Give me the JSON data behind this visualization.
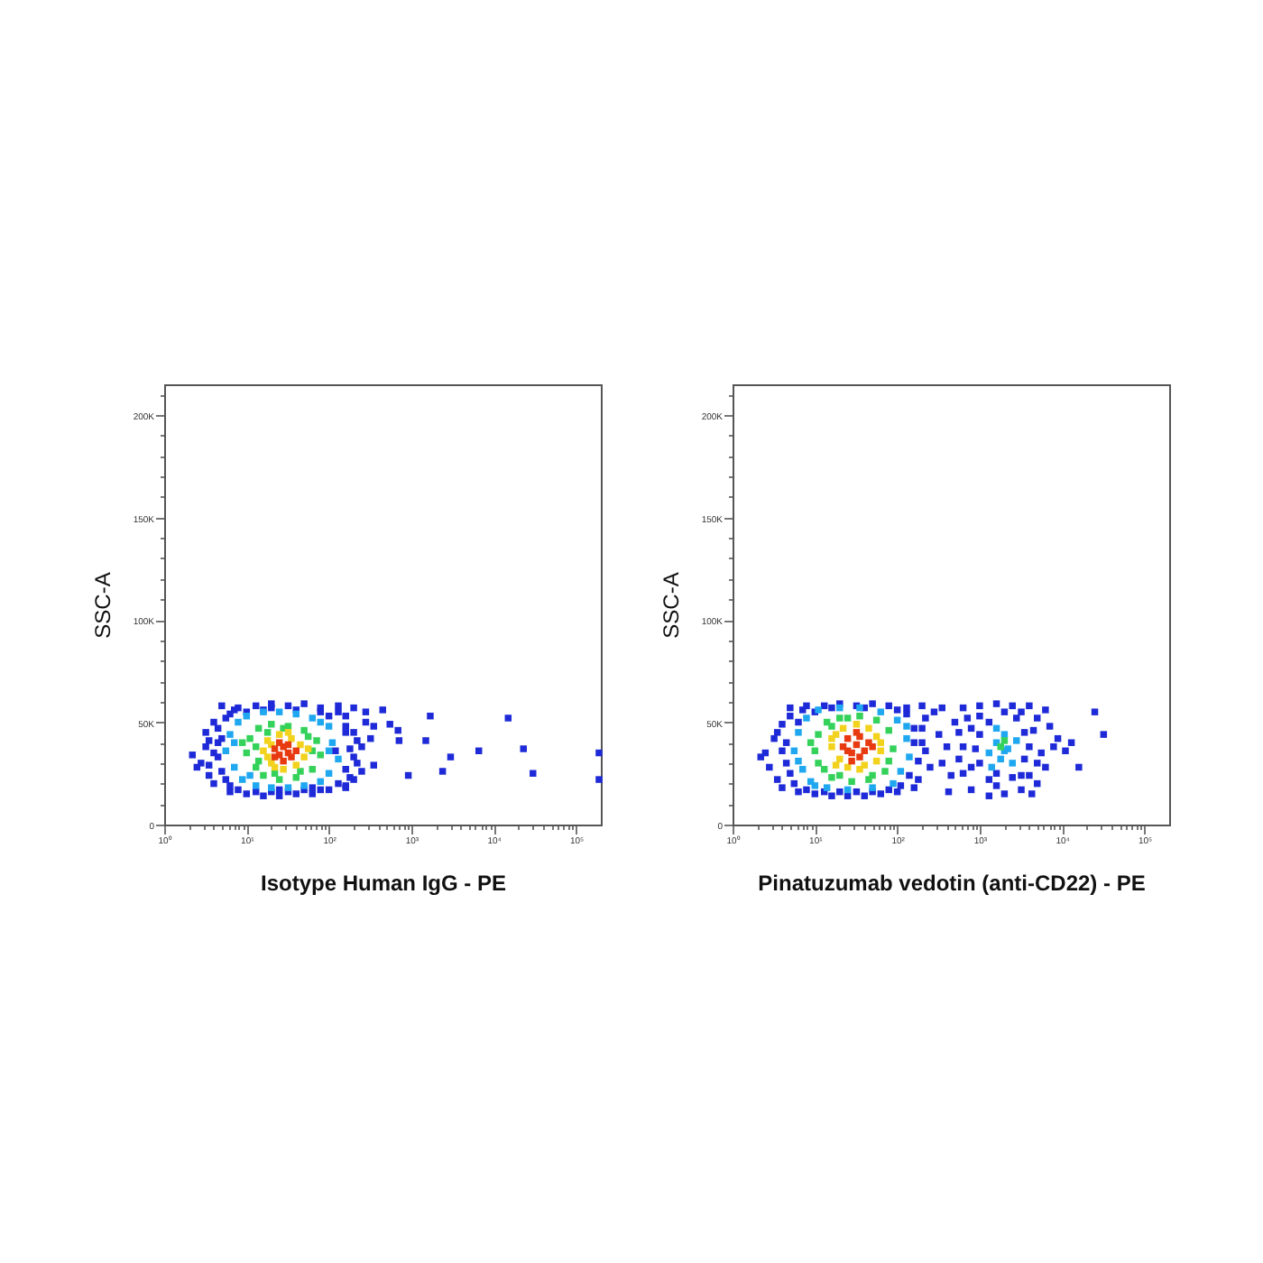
{
  "chart_data": [
    {
      "type": "scatter",
      "xlabel": "Isotype Human IgG - PE",
      "ylabel": "SSC-A",
      "log": "x",
      "grid": false,
      "marker": "square",
      "xlim": [
        1,
        200000
      ],
      "ylim": [
        0,
        215000
      ],
      "xticks": [
        {
          "value": 1,
          "label": "10⁰"
        },
        {
          "value": 2,
          "label": null
        },
        {
          "value": 3,
          "label": null
        },
        {
          "value": 4,
          "label": null
        },
        {
          "value": 5,
          "label": null
        },
        {
          "value": 6,
          "label": null
        },
        {
          "value": 7,
          "label": null
        },
        {
          "value": 8,
          "label": null
        },
        {
          "value": 9,
          "label": null
        },
        {
          "value": 10,
          "label": "10¹"
        },
        {
          "value": 20,
          "label": null
        },
        {
          "value": 30,
          "label": null
        },
        {
          "value": 40,
          "label": null
        },
        {
          "value": 50,
          "label": null
        },
        {
          "value": 60,
          "label": null
        },
        {
          "value": 70,
          "label": null
        },
        {
          "value": 80,
          "label": null
        },
        {
          "value": 90,
          "label": null
        },
        {
          "value": 100,
          "label": "10²"
        },
        {
          "value": 200,
          "label": null
        },
        {
          "value": 300,
          "label": null
        },
        {
          "value": 400,
          "label": null
        },
        {
          "value": 500,
          "label": null
        },
        {
          "value": 600,
          "label": null
        },
        {
          "value": 700,
          "label": null
        },
        {
          "value": 800,
          "label": null
        },
        {
          "value": 900,
          "label": null
        },
        {
          "value": 1000,
          "label": "10³"
        },
        {
          "value": 2000,
          "label": null
        },
        {
          "value": 3000,
          "label": null
        },
        {
          "value": 4000,
          "label": null
        },
        {
          "value": 5000,
          "label": null
        },
        {
          "value": 6000,
          "label": null
        },
        {
          "value": 7000,
          "label": null
        },
        {
          "value": 8000,
          "label": null
        },
        {
          "value": 9000,
          "label": null
        },
        {
          "value": 10000,
          "label": "10⁴"
        },
        {
          "value": 20000,
          "label": null
        },
        {
          "value": 30000,
          "label": null
        },
        {
          "value": 40000,
          "label": null
        },
        {
          "value": 50000,
          "label": null
        },
        {
          "value": 60000,
          "label": null
        },
        {
          "value": 70000,
          "label": null
        },
        {
          "value": 80000,
          "label": null
        },
        {
          "value": 90000,
          "label": null
        },
        {
          "value": 100000,
          "label": "10⁵"
        }
      ],
      "yticks": [
        0,
        {
          "value": 10000,
          "label": null
        },
        {
          "value": 20000,
          "label": null
        },
        {
          "value": 30000,
          "label": null
        },
        {
          "value": 40000,
          "label": null
        },
        {
          "value": 50000,
          "label": "50K"
        },
        {
          "value": 60000,
          "label": null
        },
        {
          "value": 70000,
          "label": null
        },
        {
          "value": 80000,
          "label": null
        },
        {
          "value": 90000,
          "label": null
        },
        {
          "value": 100000,
          "label": "100K"
        },
        {
          "value": 110000,
          "label": null
        },
        {
          "value": 120000,
          "label": null
        },
        {
          "value": 130000,
          "label": null
        },
        {
          "value": 140000,
          "label": null
        },
        {
          "value": 150000,
          "label": "150K"
        },
        {
          "value": 160000,
          "label": null
        },
        {
          "value": 170000,
          "label": null
        },
        {
          "value": 180000,
          "label": null
        },
        {
          "value": 190000,
          "label": null
        },
        {
          "value": 200000,
          "label": "200K"
        },
        {
          "value": 210000,
          "label": null
        }
      ],
      "series": [
        {
          "color": "#1e2ad8",
          "x": [
            5,
            7.9,
            13,
            20,
            32,
            50,
            79,
            130,
            200,
            280,
            6.3,
            10,
            16,
            25,
            40,
            63,
            100,
            160,
            2.8,
            3.2,
            3.5,
            3.2,
            4,
            4,
            4.5,
            2.5,
            2.2,
            200,
            220,
            250,
            280,
            320,
            200,
            350,
            5,
            5,
            6.3,
            6.3,
            160,
            160,
            180,
            4.5,
            130,
            250,
            16,
            40,
            10,
            25,
            63,
            100,
            4,
            4.5,
            5.6,
            5.6,
            7.9,
            13,
            20,
            32,
            50,
            79,
            130,
            160,
            200,
            220,
            160,
            79,
            20,
            7.1,
            3.5,
            3.5,
            450,
            550,
            690,
            710,
            350,
            920,
            1500,
            1700,
            2400,
            3000,
            6600,
            15000,
            23000,
            30000,
            190000,
            190000,
            180,
            160,
            120
          ],
          "values": [
            58000,
            57000,
            58000,
            59000,
            58000,
            59000,
            57000,
            58000,
            57000,
            55000,
            16000,
            15000,
            14000,
            14000,
            15000,
            15000,
            17000,
            19000,
            30000,
            38000,
            24000,
            45000,
            50000,
            20000,
            33000,
            28000,
            34000,
            45000,
            30000,
            38000,
            50000,
            42000,
            22000,
            48000,
            42000,
            26000,
            54000,
            19000,
            53000,
            27000,
            37000,
            40000,
            55000,
            26000,
            56000,
            56000,
            55000,
            17000,
            18000,
            53000,
            35000,
            47000,
            52000,
            22000,
            17000,
            16000,
            16000,
            16000,
            17000,
            17000,
            20000,
            45000,
            33000,
            41000,
            48000,
            55000,
            57000,
            56000,
            41000,
            29000,
            56000,
            49000,
            46000,
            41000,
            29000,
            24000,
            41000,
            53000,
            26000,
            33000,
            36000,
            52000,
            37000,
            25000,
            35000,
            22000,
            23000,
            18000,
            36000
          ]
        },
        {
          "color": "#1fa8f0",
          "x": [
            5.6,
            6.3,
            7.1,
            7.9,
            8.9,
            10,
            13,
            16,
            20,
            25,
            32,
            40,
            50,
            63,
            79,
            100,
            110,
            130,
            100,
            7.1,
            100,
            11,
            79
          ],
          "values": [
            36000,
            44000,
            28000,
            50000,
            22000,
            53000,
            19000,
            55000,
            18000,
            55000,
            18000,
            54000,
            19000,
            52000,
            21000,
            48000,
            40000,
            32000,
            25000,
            40000,
            36000,
            24000,
            50000
          ]
        },
        {
          "color": "#34d25a",
          "x": [
            10,
            11,
            13,
            14,
            16,
            20,
            25,
            32,
            40,
            50,
            63,
            71,
            79,
            13,
            18,
            45,
            56,
            14,
            63,
            28,
            22,
            8.9
          ],
          "values": [
            35000,
            42000,
            28000,
            47000,
            24000,
            49000,
            22000,
            48000,
            23000,
            46000,
            27000,
            41000,
            34000,
            38000,
            45000,
            26000,
            43000,
            31000,
            36000,
            47000,
            25000,
            40000
          ]
        },
        {
          "color": "#f2d21c",
          "x": [
            16,
            18,
            20,
            25,
            35,
            45,
            50,
            40,
            28,
            18,
            20,
            32,
            56,
            22
          ],
          "values": [
            36000,
            41000,
            30000,
            44000,
            42000,
            39000,
            33000,
            29000,
            27000,
            33000,
            39000,
            45000,
            37000,
            28000
          ]
        },
        {
          "color": "#e83a10",
          "x": [
            22,
            25,
            28,
            32,
            35,
            28,
            25,
            32,
            40,
            22
          ],
          "values": [
            37000,
            34000,
            38000,
            35000,
            33000,
            31000,
            40000,
            39000,
            36000,
            33000
          ]
        }
      ]
    },
    {
      "type": "scatter",
      "xlabel": "Pinatuzumab vedotin (anti-CD22) - PE",
      "ylabel": "SSC-A",
      "log": "x",
      "grid": false,
      "marker": "square",
      "xlim": [
        1,
        200000
      ],
      "ylim": [
        0,
        215000
      ],
      "xticks": [
        {
          "value": 1,
          "label": "10⁰"
        },
        {
          "value": 2,
          "label": null
        },
        {
          "value": 3,
          "label": null
        },
        {
          "value": 4,
          "label": null
        },
        {
          "value": 5,
          "label": null
        },
        {
          "value": 6,
          "label": null
        },
        {
          "value": 7,
          "label": null
        },
        {
          "value": 8,
          "label": null
        },
        {
          "value": 9,
          "label": null
        },
        {
          "value": 10,
          "label": "10¹"
        },
        {
          "value": 20,
          "label": null
        },
        {
          "value": 30,
          "label": null
        },
        {
          "value": 40,
          "label": null
        },
        {
          "value": 50,
          "label": null
        },
        {
          "value": 60,
          "label": null
        },
        {
          "value": 70,
          "label": null
        },
        {
          "value": 80,
          "label": null
        },
        {
          "value": 90,
          "label": null
        },
        {
          "value": 100,
          "label": "10²"
        },
        {
          "value": 200,
          "label": null
        },
        {
          "value": 300,
          "label": null
        },
        {
          "value": 400,
          "label": null
        },
        {
          "value": 500,
          "label": null
        },
        {
          "value": 600,
          "label": null
        },
        {
          "value": 700,
          "label": null
        },
        {
          "value": 800,
          "label": null
        },
        {
          "value": 900,
          "label": null
        },
        {
          "value": 1000,
          "label": "10³"
        },
        {
          "value": 2000,
          "label": null
        },
        {
          "value": 3000,
          "label": null
        },
        {
          "value": 4000,
          "label": null
        },
        {
          "value": 5000,
          "label": null
        },
        {
          "value": 6000,
          "label": null
        },
        {
          "value": 7000,
          "label": null
        },
        {
          "value": 8000,
          "label": null
        },
        {
          "value": 9000,
          "label": null
        },
        {
          "value": 10000,
          "label": "10⁴"
        },
        {
          "value": 20000,
          "label": null
        },
        {
          "value": 30000,
          "label": null
        },
        {
          "value": 40000,
          "label": null
        },
        {
          "value": 50000,
          "label": null
        },
        {
          "value": 60000,
          "label": null
        },
        {
          "value": 70000,
          "label": null
        },
        {
          "value": 80000,
          "label": null
        },
        {
          "value": 90000,
          "label": null
        },
        {
          "value": 100000,
          "label": "10⁵"
        }
      ],
      "yticks": [
        0,
        {
          "value": 10000,
          "label": null
        },
        {
          "value": 20000,
          "label": null
        },
        {
          "value": 30000,
          "label": null
        },
        {
          "value": 40000,
          "label": null
        },
        {
          "value": 50000,
          "label": "50K"
        },
        {
          "value": 60000,
          "label": null
        },
        {
          "value": 70000,
          "label": null
        },
        {
          "value": 80000,
          "label": null
        },
        {
          "value": 90000,
          "label": null
        },
        {
          "value": 100000,
          "label": "100K"
        },
        {
          "value": 110000,
          "label": null
        },
        {
          "value": 120000,
          "label": null
        },
        {
          "value": 130000,
          "label": null
        },
        {
          "value": 140000,
          "label": null
        },
        {
          "value": 150000,
          "label": "150K"
        },
        {
          "value": 160000,
          "label": null
        },
        {
          "value": 170000,
          "label": null
        },
        {
          "value": 180000,
          "label": null
        },
        {
          "value": 190000,
          "label": null
        },
        {
          "value": 200000,
          "label": "200K"
        },
        {
          "value": 210000,
          "label": null
        }
      ],
      "series": [
        {
          "color": "#1e2ad8",
          "x": [
            5,
            7.9,
            13,
            20,
            32,
            50,
            79,
            130,
            200,
            280,
            6.3,
            10,
            16,
            25,
            40,
            63,
            100,
            160,
            2.5,
            2.8,
            3.2,
            3.5,
            4,
            4,
            2.2,
            4.5,
            4.5,
            5,
            5,
            200,
            220,
            250,
            180,
            320,
            220,
            160,
            180,
            6.3,
            130,
            140,
            10,
            5.6,
            4,
            7.1,
            7.9,
            13,
            20,
            32,
            50,
            79,
            110,
            160,
            200,
            16,
            40,
            100,
            3.5,
            350,
            400,
            450,
            350,
            500,
            420,
            630,
            1000,
            1600,
            2500,
            4000,
            6300,
            790,
            1300,
            2000,
            3200,
            5000,
            560,
            560,
            630,
            710,
            630,
            7100,
            7900,
            6300,
            8900,
            5000,
            5600,
            4000,
            1000,
            1000,
            1300,
            1300,
            2800,
            3500,
            3500,
            2500,
            890,
            4000,
            1600,
            1000,
            790,
            790,
            4500,
            3200,
            2000,
            5000,
            1600,
            3200,
            25000,
            32000,
            16000,
            13000,
            4300,
            11000
          ],
          "values": [
            57000,
            58000,
            58000,
            59000,
            58000,
            59000,
            58000,
            57000,
            58000,
            55000,
            16000,
            15000,
            14000,
            14000,
            14000,
            15000,
            16000,
            18000,
            35000,
            28000,
            42000,
            22000,
            49000,
            18000,
            33000,
            30000,
            40000,
            25000,
            53000,
            47000,
            36000,
            28000,
            22000,
            44000,
            52000,
            40000,
            31000,
            50000,
            54000,
            24000,
            55000,
            20000,
            36000,
            56000,
            17000,
            16000,
            16000,
            16000,
            16000,
            17000,
            19000,
            47000,
            40000,
            57000,
            57000,
            56000,
            45000,
            57000,
            38000,
            24000,
            30000,
            50000,
            16000,
            57000,
            58000,
            59000,
            58000,
            58000,
            56000,
            17000,
            14000,
            15000,
            17000,
            20000,
            45000,
            32000,
            25000,
            52000,
            38000,
            48000,
            38000,
            28000,
            42000,
            52000,
            35000,
            24000,
            30000,
            44000,
            50000,
            22000,
            52000,
            45000,
            32000,
            23000,
            37000,
            38000,
            19000,
            53000,
            47000,
            28000,
            46000,
            55000,
            55000,
            30000,
            25000,
            24000,
            55000,
            44000,
            28000,
            40000,
            15000,
            36000
          ]
        },
        {
          "color": "#1fa8f0",
          "x": [
            5.6,
            6.3,
            7.1,
            7.9,
            8.9,
            11,
            14,
            20,
            25,
            35,
            50,
            63,
            89,
            100,
            130,
            140,
            110,
            6.3,
            130,
            10,
            1300,
            1600,
            1800,
            2000,
            2200,
            2500,
            1600,
            1400,
            2800,
            2000
          ],
          "values": [
            36000,
            45000,
            27000,
            52000,
            21000,
            56000,
            18000,
            57000,
            17000,
            57000,
            18000,
            55000,
            20000,
            51000,
            42000,
            33000,
            26000,
            31000,
            48000,
            19000,
            35000,
            40000,
            32000,
            44000,
            37000,
            30000,
            47000,
            28000,
            41000,
            36000
          ]
        },
        {
          "color": "#34d25a",
          "x": [
            10,
            11,
            13,
            14,
            16,
            20,
            28,
            35,
            45,
            56,
            71,
            79,
            89,
            11,
            16,
            50,
            79,
            25,
            20,
            8.9,
            1800,
            2000
          ],
          "values": [
            36000,
            44000,
            27000,
            50000,
            23000,
            52000,
            21000,
            53000,
            22000,
            51000,
            26000,
            46000,
            37000,
            30000,
            48000,
            24000,
            31000,
            52000,
            24000,
            40000,
            38000,
            41000
          ]
        },
        {
          "color": "#f2d21c",
          "x": [
            16,
            18,
            20,
            22,
            32,
            45,
            56,
            63,
            56,
            40,
            25,
            18,
            16,
            63,
            35
          ],
          "values": [
            38000,
            44000,
            32000,
            47000,
            49000,
            47000,
            43000,
            36000,
            31000,
            29000,
            28000,
            29000,
            42000,
            40000,
            27000
          ]
        },
        {
          "color": "#e83a10",
          "x": [
            22,
            25,
            28,
            32,
            35,
            40,
            45,
            28,
            35,
            25,
            50,
            32
          ],
          "values": [
            38000,
            42000,
            35000,
            39000,
            43000,
            36000,
            40000,
            31000,
            33000,
            36000,
            38000,
            45000
          ]
        }
      ]
    }
  ]
}
